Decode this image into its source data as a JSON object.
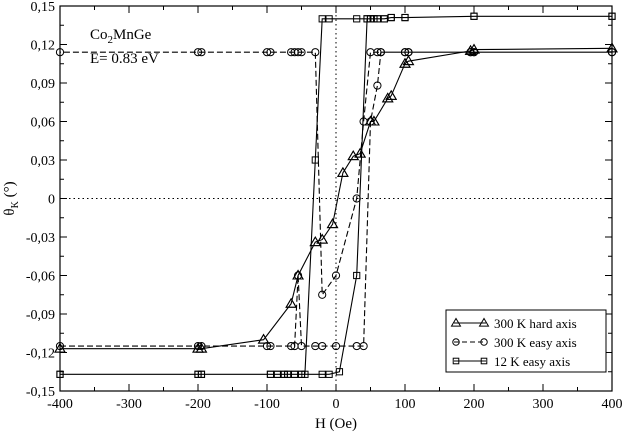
{
  "chart_data": {
    "type": "line",
    "title": "",
    "xlabel": "H (Oe)",
    "ylabel_main": "θ",
    "ylabel_sub": "K",
    "ylabel_unit": " (°)",
    "xlim": [
      -400,
      400
    ],
    "ylim": [
      -0.15,
      0.15
    ],
    "xticks": [
      -400,
      -300,
      -200,
      -100,
      0,
      100,
      200,
      300,
      400
    ],
    "xtick_labels": [
      "-400",
      "-300",
      "-200",
      "-100",
      "0",
      "100",
      "200",
      "300",
      "400"
    ],
    "yticks": [
      -0.15,
      -0.12,
      -0.09,
      -0.06,
      -0.03,
      0,
      0.03,
      0.06,
      0.09,
      0.12,
      0.15
    ],
    "ytick_labels": [
      "-0,15",
      "-0,12",
      "-0,09",
      "-0,06",
      "-0,03",
      "0",
      "0,03",
      "0,06",
      "0,09",
      "0,12",
      "0,15"
    ],
    "annotation": {
      "material_main": "Co",
      "material_sub": "2",
      "material_rest": "MnGe",
      "energy": "E= 0.83 eV"
    },
    "grid": false,
    "zero_lines": "dotted",
    "legend_position": "bottom-right",
    "series": [
      {
        "name": "300 K hard axis",
        "marker": "triangle",
        "line_style": "solid",
        "x": [
          -400,
          -200,
          -195,
          -105,
          -65,
          -55,
          -30,
          -20,
          -5,
          10,
          25,
          35,
          50,
          55,
          75,
          80,
          100,
          105,
          195,
          200,
          400,
          400,
          200,
          195,
          105,
          100,
          80,
          75,
          55,
          50,
          35,
          25,
          10,
          -5,
          -20,
          -30,
          -55,
          -65,
          -105,
          -195,
          -200,
          -400
        ],
        "y": [
          -0.117,
          -0.117,
          -0.117,
          -0.11,
          -0.082,
          -0.06,
          -0.034,
          -0.032,
          -0.02,
          0.02,
          0.033,
          0.035,
          0.06,
          0.06,
          0.078,
          0.08,
          0.105,
          0.107,
          0.115,
          0.116,
          0.117,
          0.117,
          0.116,
          0.115,
          0.107,
          0.105,
          0.08,
          0.078,
          0.06,
          0.06,
          0.035,
          0.033,
          0.02,
          -0.02,
          -0.032,
          -0.034,
          -0.06,
          -0.082,
          -0.11,
          -0.117,
          -0.117,
          -0.117
        ]
      },
      {
        "name": "300 K easy axis",
        "marker": "circle",
        "line_style": "dashed",
        "x": [
          -400,
          -200,
          -195,
          -100,
          -95,
          -65,
          -60,
          -55,
          -50,
          -30,
          -20,
          0,
          30,
          40,
          50,
          60,
          65,
          100,
          105,
          195,
          200,
          400,
          400,
          200,
          195,
          105,
          100,
          65,
          60,
          50,
          40,
          30,
          0,
          -20,
          -30,
          -50,
          -55,
          -60,
          -65,
          -95,
          -100,
          -195,
          -200,
          -400
        ],
        "y": [
          -0.115,
          -0.115,
          -0.115,
          -0.115,
          -0.115,
          -0.115,
          -0.115,
          -0.06,
          -0.115,
          -0.115,
          -0.115,
          -0.115,
          -0.115,
          -0.115,
          0.06,
          0.088,
          0.114,
          0.114,
          0.114,
          0.114,
          0.114,
          0.114,
          0.114,
          0.114,
          0.114,
          0.114,
          0.114,
          0.114,
          0.114,
          0.114,
          0.06,
          0.0,
          -0.06,
          -0.075,
          0.114,
          0.114,
          0.114,
          0.114,
          0.114,
          0.114,
          0.114,
          0.114,
          0.114,
          0.114
        ]
      },
      {
        "name": "12 K easy axis",
        "marker": "square",
        "line_style": "solid",
        "x": [
          -400,
          -200,
          -195,
          -95,
          -85,
          -75,
          -70,
          -60,
          -50,
          -20,
          -10,
          5,
          30,
          45,
          50,
          55,
          60,
          70,
          80,
          100,
          200,
          400,
          400,
          200,
          100,
          80,
          70,
          60,
          55,
          50,
          45,
          30,
          -10,
          -20,
          -30,
          -45,
          -50,
          -60,
          -70,
          -75,
          -85,
          -95,
          -195,
          -200,
          -400
        ],
        "y": [
          -0.137,
          -0.137,
          -0.137,
          -0.137,
          -0.137,
          -0.137,
          -0.137,
          -0.137,
          -0.137,
          -0.137,
          -0.137,
          -0.135,
          -0.06,
          0.14,
          0.14,
          0.14,
          0.14,
          0.14,
          0.141,
          0.141,
          0.142,
          0.142,
          0.142,
          0.142,
          0.141,
          0.141,
          0.14,
          0.14,
          0.14,
          0.14,
          0.14,
          0.14,
          0.14,
          0.14,
          0.03,
          -0.137,
          -0.137,
          -0.137,
          -0.137,
          -0.137,
          -0.137,
          -0.137,
          -0.137,
          -0.137,
          -0.137
        ]
      }
    ]
  }
}
